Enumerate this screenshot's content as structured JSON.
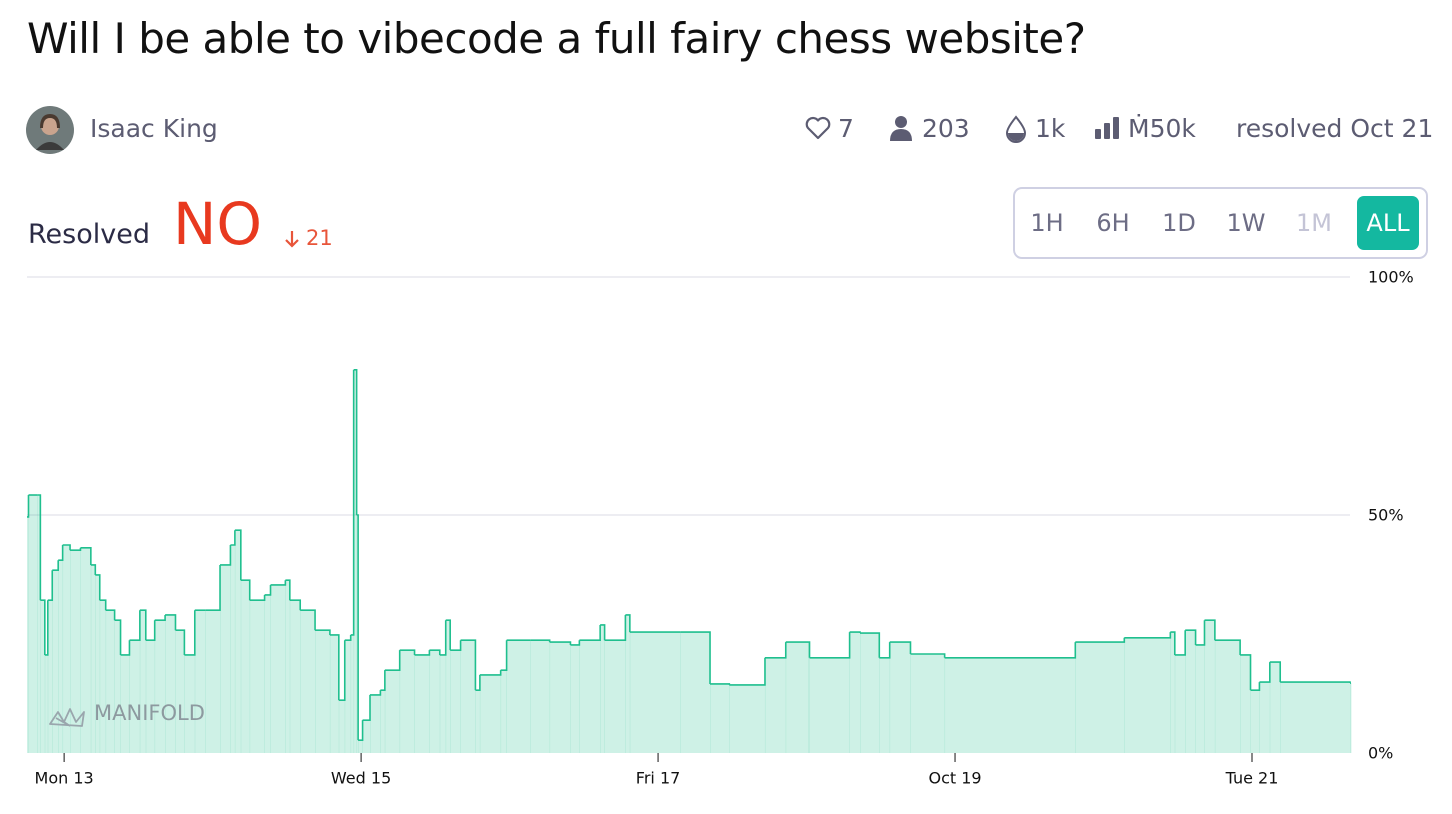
{
  "title": "Will I be able to vibecode a full fairy chess website?",
  "author": {
    "name": "Isaac King"
  },
  "stats": {
    "likes": 7,
    "traders": 203,
    "liquidity": "1k",
    "volume": "Ṁ50k",
    "status": "resolved Oct 21"
  },
  "resolution": {
    "label": "Resolved",
    "outcome": "NO",
    "change": 21
  },
  "time_ranges": [
    "1H",
    "6H",
    "1D",
    "1W",
    "1M",
    "ALL"
  ],
  "watermark": "MANIFOLD",
  "chart_data": {
    "type": "line",
    "x": [
      12.75,
      12.76,
      12.82,
      12.84,
      12.87,
      12.89,
      12.92,
      12.96,
      12.99,
      13.04,
      13.11,
      13.18,
      13.21,
      13.24,
      13.28,
      13.34,
      13.38,
      13.44,
      13.51,
      13.55,
      13.61,
      13.68,
      13.75,
      13.81,
      13.88,
      13.95,
      14.05,
      14.12,
      14.15,
      14.19,
      14.25,
      14.35,
      14.39,
      14.49,
      14.52,
      14.59,
      14.69,
      14.79,
      14.85,
      14.89,
      14.93,
      14.95,
      14.97,
      14.98,
      15.01,
      15.06,
      15.13,
      15.16,
      15.26,
      15.36,
      15.46,
      15.53,
      15.57,
      15.6,
      15.67,
      15.77,
      15.8,
      15.94,
      15.98,
      16.14,
      16.27,
      16.41,
      16.47,
      16.61,
      16.64,
      16.78,
      16.81,
      17.15,
      17.35,
      17.48,
      17.72,
      17.86,
      18.01,
      18.02,
      18.29,
      18.36,
      18.49,
      18.56,
      18.7,
      18.93,
      19.81,
      20.14,
      20.45,
      20.48,
      20.55,
      20.62,
      20.68,
      20.75,
      20.92,
      20.99,
      21.05,
      21.12,
      21.19,
      21.66
    ],
    "values": [
      49.6,
      54.2,
      54.2,
      32.1,
      20.6,
      32.1,
      38.4,
      40.5,
      43.7,
      42.6,
      43.1,
      39.5,
      37.4,
      32.1,
      30.0,
      27.9,
      20.6,
      23.7,
      30.0,
      23.7,
      27.9,
      29.0,
      25.8,
      20.6,
      30.0,
      30.0,
      39.5,
      43.7,
      46.8,
      36.3,
      32.1,
      33.2,
      35.3,
      36.3,
      32.1,
      30.0,
      25.8,
      24.8,
      11.1,
      23.7,
      24.8,
      80.5,
      50.0,
      2.7,
      6.9,
      12.2,
      13.2,
      17.4,
      21.6,
      20.6,
      21.6,
      20.6,
      27.9,
      21.6,
      23.7,
      13.2,
      16.4,
      17.4,
      23.7,
      23.7,
      23.3,
      22.7,
      23.7,
      26.9,
      23.7,
      29.0,
      25.4,
      25.4,
      14.5,
      14.3,
      20.0,
      23.3,
      23.3,
      20.0,
      25.4,
      25.2,
      20.0,
      23.3,
      20.8,
      20.0,
      23.3,
      24.2,
      25.4,
      20.6,
      25.8,
      22.7,
      27.9,
      23.7,
      20.6,
      13.2,
      14.9,
      19.1,
      14.9,
      14.7
    ],
    "color": "#1fbf8e",
    "xlim": [
      12.75,
      21.66
    ],
    "xticks": [
      {
        "value": 13,
        "label": "Mon 13"
      },
      {
        "value": 15,
        "label": "Wed 15"
      },
      {
        "value": 17,
        "label": "Fri 17"
      },
      {
        "value": 19,
        "label": "Oct 19"
      },
      {
        "value": 21,
        "label": "Tue 21"
      }
    ],
    "ylim": [
      0,
      100
    ],
    "yticks": [
      {
        "value": 0,
        "label": "0%"
      },
      {
        "value": 50,
        "label": "50%"
      },
      {
        "value": 100,
        "label": "100%"
      }
    ],
    "grid": true
  }
}
